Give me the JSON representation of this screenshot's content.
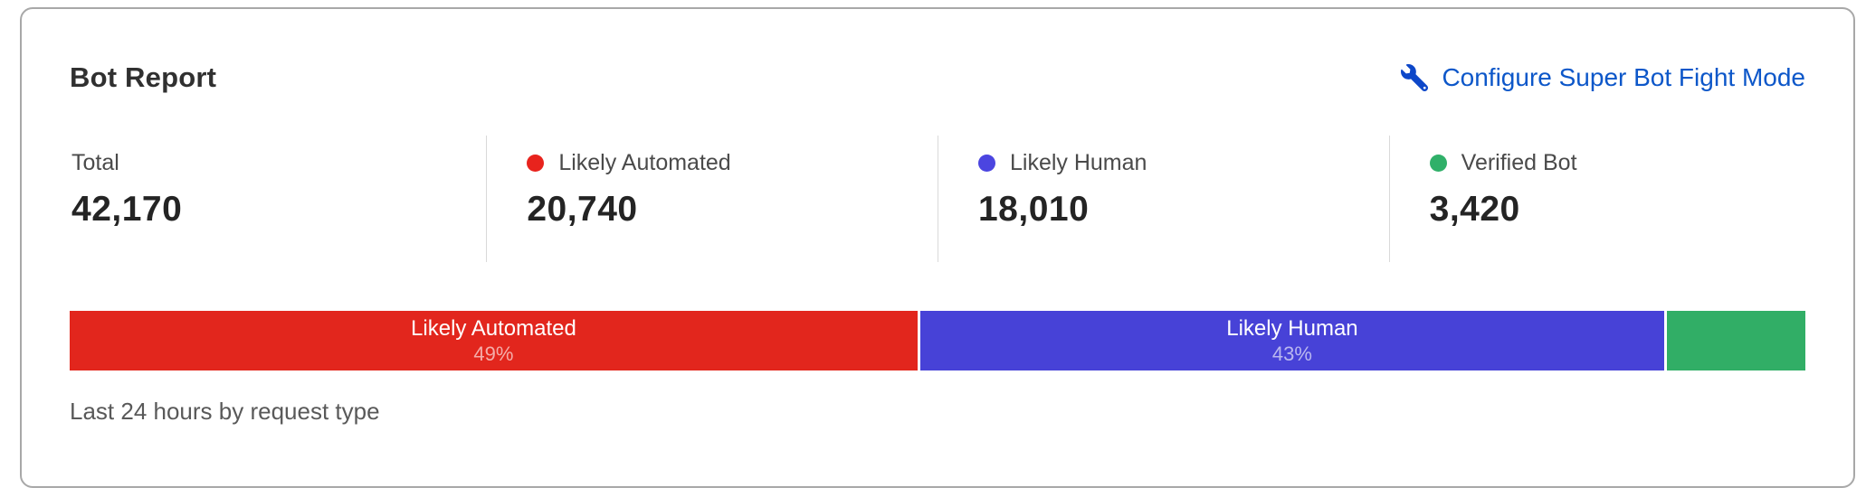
{
  "card": {
    "title": "Bot Report",
    "configure_link": {
      "label": "Configure Super Bot Fight Mode",
      "icon": "wrench-icon",
      "color": "#0d57c9"
    },
    "stats": [
      {
        "label": "Total",
        "value": "42,170",
        "dot_color": null
      },
      {
        "label": "Likely Automated",
        "value": "20,740",
        "dot_color": "#e8231d"
      },
      {
        "label": "Likely Human",
        "value": "18,010",
        "dot_color": "#4b45e0"
      },
      {
        "label": "Verified Bot",
        "value": "3,420",
        "dot_color": "#30b069"
      }
    ],
    "caption": "Last 24 hours by request type"
  },
  "chart_data": {
    "type": "bar",
    "subtype": "stacked-horizontal-single-bar",
    "title": "Bot Report",
    "total": 42170,
    "categories": [
      "Likely Automated",
      "Likely Human",
      "Verified Bot"
    ],
    "values": [
      20740,
      18010,
      3420
    ],
    "segments": [
      {
        "label": "Likely Automated",
        "value": 20740,
        "percent": 49,
        "percent_label": "49%",
        "color": "#e2261d",
        "show_label": true
      },
      {
        "label": "Likely Human",
        "value": 18010,
        "percent": 43,
        "percent_label": "43%",
        "color": "#4742d7",
        "show_label": true
      },
      {
        "label": "Verified Bot",
        "value": 3420,
        "percent": 8,
        "percent_label": "",
        "color": "#31ae66",
        "show_label": false
      }
    ],
    "xlabel": "Last 24 hours by request type",
    "legend_position": "top-stats-row",
    "grid": false
  }
}
